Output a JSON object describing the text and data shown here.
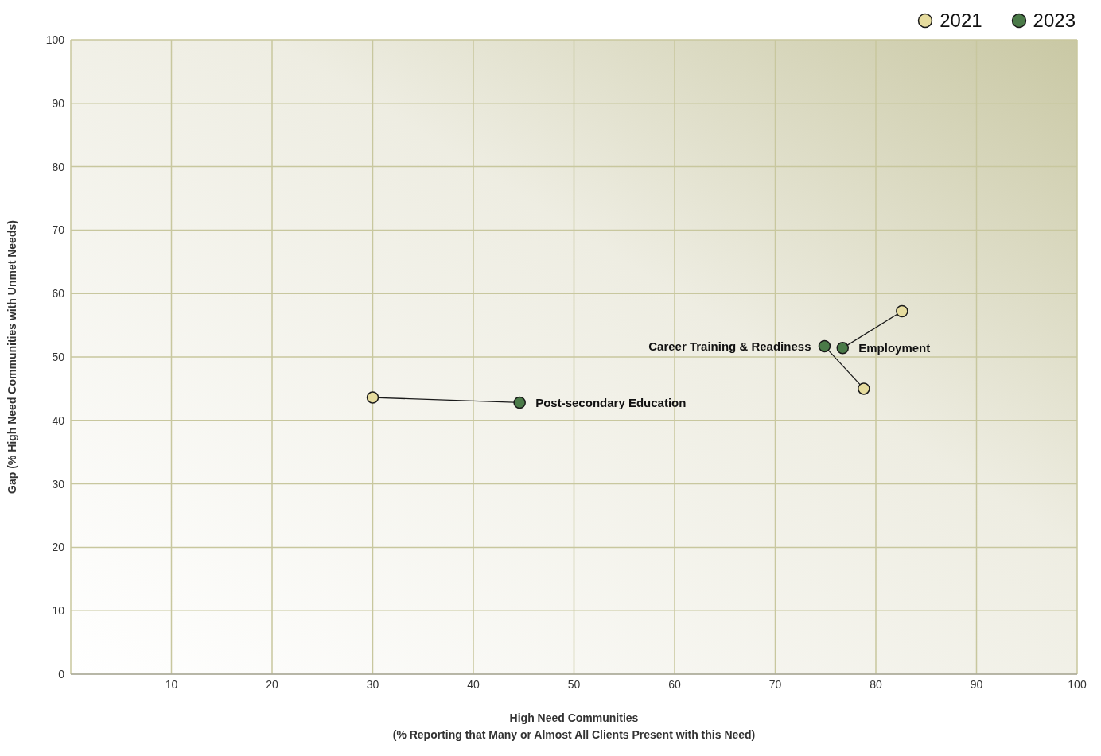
{
  "chart_data": {
    "type": "scatter",
    "xlabel": "High Need Communities\n(% Reporting that Many or Almost All Clients Present with this Need)",
    "ylabel": "Gap (% High Need Communities with Unmet Needs)",
    "series": [
      {
        "type": "line",
        "marker": "none",
        "color": "#1a1a1a",
        "x": [
          30,
          44.6
        ],
        "values": [
          43.6,
          42.8
        ]
      },
      {
        "type": "line",
        "marker": "none",
        "color": "#1a1a1a",
        "x": [
          82.6,
          76.7
        ],
        "values": [
          57.2,
          51.4
        ]
      },
      {
        "type": "line",
        "marker": "none",
        "color": "#1a1a1a",
        "x": [
          78.8,
          74.9
        ],
        "values": [
          45.0,
          51.7
        ]
      },
      {
        "name": "2021",
        "color": "#e6dc9e",
        "x": [
          30,
          82.6,
          78.8
        ],
        "values": [
          43.6,
          57.2,
          45.0
        ]
      },
      {
        "name": "2023",
        "color": "#4a7a48",
        "x": [
          44.6,
          76.7,
          74.9
        ],
        "values": [
          42.8,
          51.4,
          51.7
        ]
      }
    ],
    "annotations": [
      {
        "text": "Post-secondary Education",
        "x": 44.6,
        "y": 42.8
      },
      {
        "text": "Employment",
        "x": 76.7,
        "y": 51.4
      },
      {
        "text": "Career Training & Readiness",
        "x": 74.9,
        "y": 51.7
      }
    ],
    "xlim": [
      0,
      100
    ],
    "xticks": [
      {
        "value": 0,
        "label": null
      },
      10,
      20,
      30,
      40,
      50,
      60,
      70,
      80,
      90,
      100
    ],
    "ylim": [
      0,
      100
    ],
    "yticks": [
      0,
      10,
      20,
      30,
      40,
      50,
      60,
      70,
      80,
      90,
      100
    ],
    "grid": true,
    "legend": "top right",
    "marker": "circle",
    "line_style": "solid"
  }
}
